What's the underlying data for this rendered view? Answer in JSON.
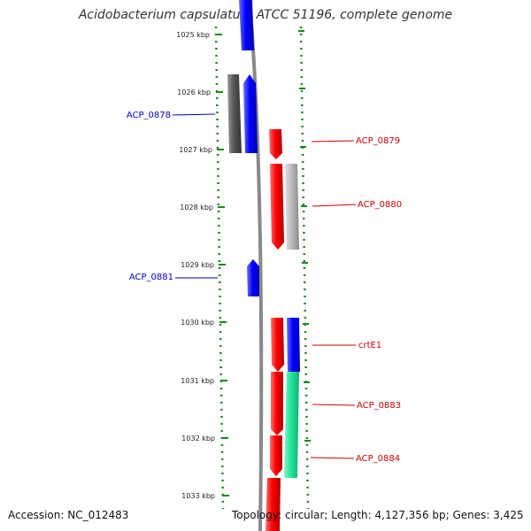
{
  "title": "Acidobacterium capsulatum ATCC 51196, complete genome",
  "footer": {
    "accession": "Accession: NC_012483",
    "topology": "Topology: circular; Length: 4,127,356 bp; Genes: 3,425"
  },
  "colors": {
    "forward": "#0000ff",
    "reverse": "#ff0000",
    "gray_dark": "#555555",
    "gray_light": "#bbbbbb",
    "teal": "#22e69a",
    "tick": "#1a8a1a",
    "backbone": "#888888"
  },
  "scale": {
    "ticks": [
      "1025 kbp",
      "1026 kbp",
      "1027 kbp",
      "1028 kbp",
      "1029 kbp",
      "1030 kbp",
      "1031 kbp",
      "1032 kbp",
      "1033 kbp"
    ]
  },
  "labels": [
    {
      "text": "ACP_0878",
      "color": "#0000cc"
    },
    {
      "text": "ACP_0879",
      "color": "#cc0000"
    },
    {
      "text": "ACP_0880",
      "color": "#cc0000"
    },
    {
      "text": "ACP_0881",
      "color": "#0000cc"
    },
    {
      "text": "crtE1",
      "color": "#cc0000"
    },
    {
      "text": "ACP_0883",
      "color": "#cc0000"
    },
    {
      "text": "ACP_0884",
      "color": "#cc0000"
    }
  ]
}
